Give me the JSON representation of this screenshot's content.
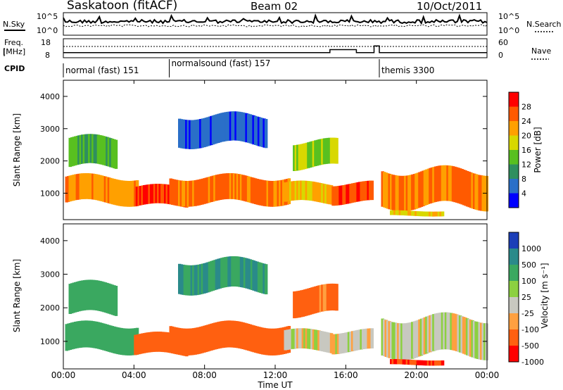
{
  "header": {
    "station": "Saskatoon (fitACF)",
    "beam": "Beam 02",
    "date": "10/Oct/2011"
  },
  "top_panels": {
    "nsky_label": "N.Sky",
    "nsearch_label": "N.Search",
    "nsky_ticks": [
      "10^5",
      "10^0"
    ],
    "nsearch_ticks": [
      "10^5",
      "10^0"
    ],
    "freq_label": "Freq.",
    "freq_unit": "[MHz]",
    "freq_ticks": [
      "18",
      "8"
    ],
    "nave_label": "Nave",
    "nave_ticks": [
      "60",
      "0"
    ],
    "cpid_label": "CPID"
  },
  "cpid_segments": [
    {
      "label": "normal (fast) 151",
      "start_hour": 0.0
    },
    {
      "label": "normalsound (fast) 157",
      "start_hour": 6.0
    },
    {
      "label": "themis 3300",
      "start_hour": 17.9
    }
  ],
  "panels": [
    {
      "id": "power",
      "ylabel": "Slant Range [km]",
      "colorbar_label": "Power [dB]",
      "colorbar_ticks": [
        "28",
        "24",
        "20",
        "16",
        "12",
        "8",
        "4"
      ],
      "colorbar_colors": [
        "#ff0000",
        "#ff5a00",
        "#ffa000",
        "#d8d800",
        "#58c020",
        "#2f8f5f",
        "#2a6fc8",
        "#0000ff"
      ]
    },
    {
      "id": "velocity",
      "ylabel": "Slant Range [km]",
      "colorbar_label": "Velocity [m s⁻¹]",
      "colorbar_ticks": [
        "1000",
        "500",
        "100",
        "25",
        "-25",
        "-100",
        "-500",
        "-1000"
      ],
      "colorbar_colors": [
        "#1c3fb8",
        "#2a8a8a",
        "#3aa860",
        "#8cd040",
        "#c8c8c0",
        "#ffa040",
        "#ff6010",
        "#ff0000"
      ]
    }
  ],
  "xaxis": {
    "label": "Time UT",
    "ticks": [
      "00:00",
      "04:00",
      "08:00",
      "12:00",
      "16:00",
      "20:00",
      "00:00"
    ]
  },
  "chart_data": {
    "type": "heatmap",
    "x_range_hours": [
      0,
      24
    ],
    "y_range_km": [
      180,
      4500
    ],
    "y_ticks": [
      1000,
      2000,
      3000,
      4000
    ],
    "freq_trace": [
      {
        "start_hour": 0.0,
        "mhz": 10.5
      },
      {
        "start_hour": 15.1,
        "mhz": 12.5
      },
      {
        "start_hour": 16.6,
        "mhz": 10.5
      },
      {
        "start_hour": 17.6,
        "mhz": 15.0
      },
      {
        "start_hour": 17.9,
        "mhz": 10.5
      }
    ],
    "scatter_bands": [
      {
        "t0": 0.1,
        "t1": 4.2,
        "r0": 700,
        "r1": 1500,
        "power_db": 24,
        "velocity": 300
      },
      {
        "t0": 4.0,
        "t1": 7.0,
        "r0": 600,
        "r1": 1200,
        "power_db": 28,
        "velocity": -250
      },
      {
        "t0": 6.0,
        "t1": 12.8,
        "r0": 700,
        "r1": 1500,
        "power_db": 26,
        "velocity": -200
      },
      {
        "t0": 12.5,
        "t1": 15.2,
        "r0": 700,
        "r1": 1300,
        "power_db": 22,
        "velocity": 0
      },
      {
        "t0": 15.2,
        "t1": 17.5,
        "r0": 700,
        "r1": 1300,
        "power_db": 28,
        "velocity": 0
      },
      {
        "t0": 18.0,
        "t1": 24.0,
        "r0": 600,
        "r1": 1700,
        "power_db": 26,
        "velocity": 0
      },
      {
        "t0": 0.3,
        "t1": 3.0,
        "r0": 1800,
        "r1": 2700,
        "power_db": 14,
        "velocity": 200
      },
      {
        "t0": 13.0,
        "t1": 15.5,
        "r0": 1800,
        "r1": 2600,
        "power_db": 18,
        "velocity": -150
      },
      {
        "t0": 6.5,
        "t1": 11.5,
        "r0": 2500,
        "r1": 3400,
        "power_db": 6,
        "velocity": 500
      },
      {
        "t0": 18.5,
        "t1": 21.5,
        "r0": 300,
        "r1": 450,
        "power_db": 20,
        "velocity": -500
      }
    ]
  }
}
